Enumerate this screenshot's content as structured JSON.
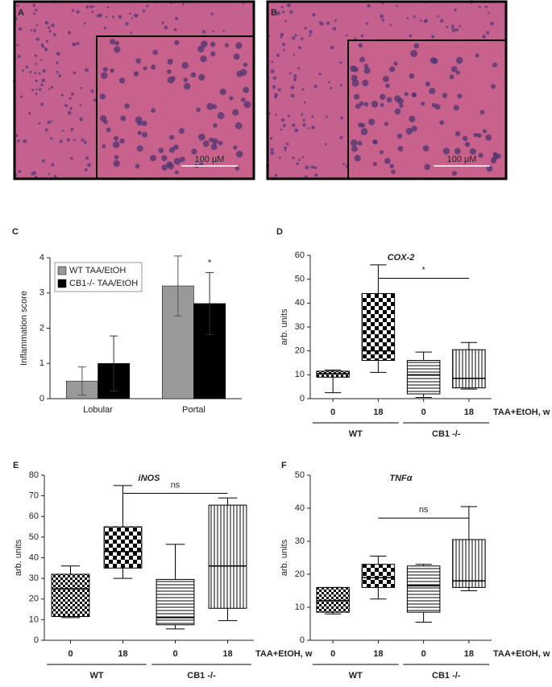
{
  "images": [
    {
      "label": "A",
      "scale_bar": "100 µM"
    },
    {
      "label": "B",
      "scale_bar": "100 µM"
    }
  ],
  "chart_data": [
    {
      "type": "bar",
      "panel": "C",
      "ylabel": "Inflammation score",
      "categories": [
        "Lobular",
        "Portal"
      ],
      "series": [
        {
          "name": "WT TAA/EtOH",
          "color": "#999999",
          "values": [
            0.5,
            3.2
          ],
          "errors": [
            0.4,
            0.85
          ]
        },
        {
          "name": "CB1-/- TAA/EtOH",
          "color": "#000000",
          "values": [
            1.0,
            2.7
          ],
          "errors": [
            0.78,
            0.88
          ]
        }
      ],
      "annotation": "*",
      "legend": "top-left",
      "ylim": [
        0,
        4
      ],
      "yticks": [
        0,
        1,
        2,
        3,
        4
      ]
    },
    {
      "type": "box",
      "panel": "D",
      "title": "COX-2",
      "ylabel": "arb. units",
      "xlabel": "TAA+EtOH, w",
      "categories": [
        "0",
        "18",
        "0",
        "18"
      ],
      "group_labels": [
        "WT",
        "CB1 -/-"
      ],
      "patterns": [
        "checker-small",
        "checker-large",
        "horizontal",
        "vertical"
      ],
      "boxes": [
        {
          "min": 2.5,
          "q1": 9,
          "median": 10.5,
          "q3": 11.5,
          "max": 12
        },
        {
          "min": 11,
          "q1": 16,
          "median": 20,
          "q3": 44,
          "max": 56
        },
        {
          "min": 0.5,
          "q1": 2,
          "median": 10,
          "q3": 16,
          "max": 19.5
        },
        {
          "min": 4,
          "q1": 4.5,
          "median": 8.5,
          "q3": 20.5,
          "max": 23.5
        }
      ],
      "annotation": "*",
      "ylim": [
        0,
        60
      ],
      "yticks": [
        0,
        10,
        20,
        30,
        40,
        50,
        60
      ]
    },
    {
      "type": "box",
      "panel": "E",
      "title": "iNOS",
      "ylabel": "arb. units",
      "xlabel": "TAA+EtOH, w",
      "categories": [
        "0",
        "18",
        "0",
        "18"
      ],
      "group_labels": [
        "WT",
        "CB1 -/-"
      ],
      "patterns": [
        "checker-small",
        "checker-large",
        "horizontal",
        "vertical"
      ],
      "boxes": [
        {
          "min": 11,
          "q1": 11.5,
          "median": 25,
          "q3": 32,
          "max": 36
        },
        {
          "min": 30,
          "q1": 35,
          "median": 43,
          "q3": 55,
          "max": 75
        },
        {
          "min": 5.5,
          "q1": 7.5,
          "median": 11,
          "q3": 29.5,
          "max": 46.5
        },
        {
          "min": 9.5,
          "q1": 15.5,
          "median": 36,
          "q3": 65.5,
          "max": 69
        }
      ],
      "annotation": "ns",
      "ylim": [
        0,
        80
      ],
      "yticks": [
        0,
        10,
        20,
        30,
        40,
        50,
        60,
        70,
        80
      ]
    },
    {
      "type": "box",
      "panel": "F",
      "title": "TNFα",
      "ylabel": "arb. units",
      "xlabel": "TAA+EtOH, w",
      "categories": [
        "0",
        "18",
        "0",
        "18"
      ],
      "group_labels": [
        "WT",
        "CB1 -/-"
      ],
      "patterns": [
        "checker-small",
        "checker-large",
        "horizontal",
        "vertical"
      ],
      "boxes": [
        {
          "min": 8,
          "q1": 8.5,
          "median": 12,
          "q3": 16,
          "max": 16
        },
        {
          "min": 12.5,
          "q1": 16,
          "median": 19,
          "q3": 23,
          "max": 25.5
        },
        {
          "min": 5.5,
          "q1": 8.5,
          "median": 16.5,
          "q3": 22.5,
          "max": 23
        },
        {
          "min": 15,
          "q1": 16,
          "median": 18,
          "q3": 30.5,
          "max": 40.5
        }
      ],
      "annotation": "ns",
      "ylim": [
        0,
        50
      ],
      "yticks": [
        0,
        10,
        20,
        30,
        40,
        50
      ]
    }
  ]
}
